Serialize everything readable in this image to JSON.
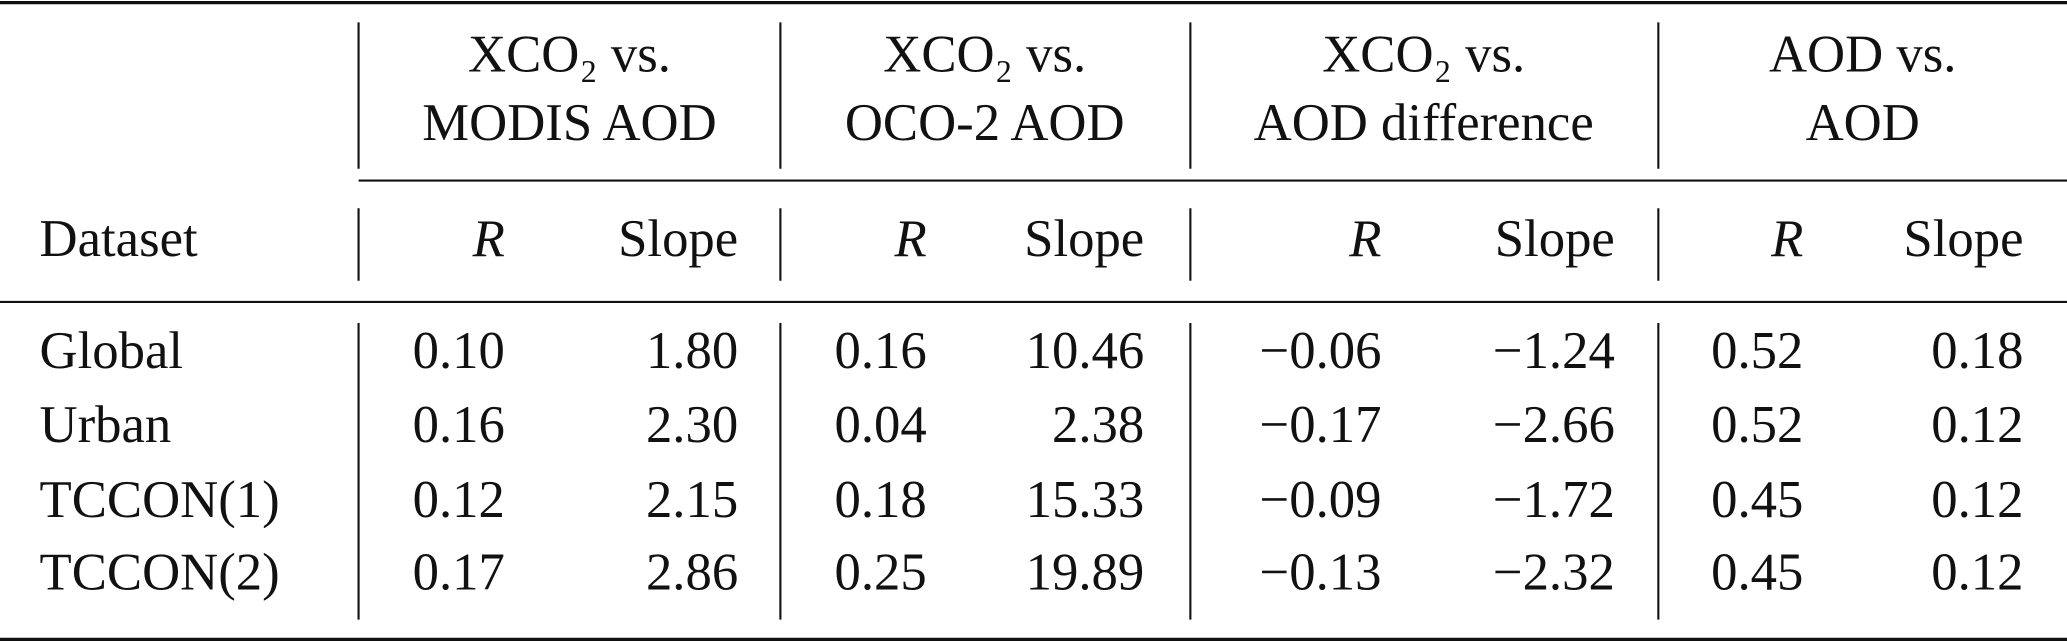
{
  "table": {
    "groups": [
      {
        "lines": [
          "XCO₂ vs.",
          "MODIS AOD"
        ]
      },
      {
        "lines": [
          "XCO₂ vs.",
          "OCO-2 AOD"
        ]
      },
      {
        "lines": [
          "XCO₂ vs.",
          "AOD difference"
        ]
      },
      {
        "lines": [
          "AOD vs.",
          "AOD"
        ]
      }
    ],
    "header": {
      "dataset": "Dataset",
      "columns": [
        "R",
        "Slope",
        "R",
        "Slope",
        "R",
        "Slope",
        "R",
        "Slope"
      ]
    },
    "rows": [
      [
        "Global",
        "0.10",
        "1.80",
        "0.16",
        "10.46",
        "−0.06",
        "−1.24",
        "0.52",
        "0.18"
      ],
      [
        "Urban",
        "0.16",
        "2.30",
        "0.04",
        "2.38",
        "−0.17",
        "−2.66",
        "0.52",
        "0.12"
      ],
      [
        "TCCON(1)",
        "0.12",
        "2.15",
        "0.18",
        "15.33",
        "−0.09",
        "−1.72",
        "0.45",
        "0.12"
      ],
      [
        "TCCON(2)",
        "0.17",
        "2.86",
        "0.25",
        "19.89",
        "−0.13",
        "−2.32",
        "0.45",
        "0.12"
      ]
    ]
  }
}
